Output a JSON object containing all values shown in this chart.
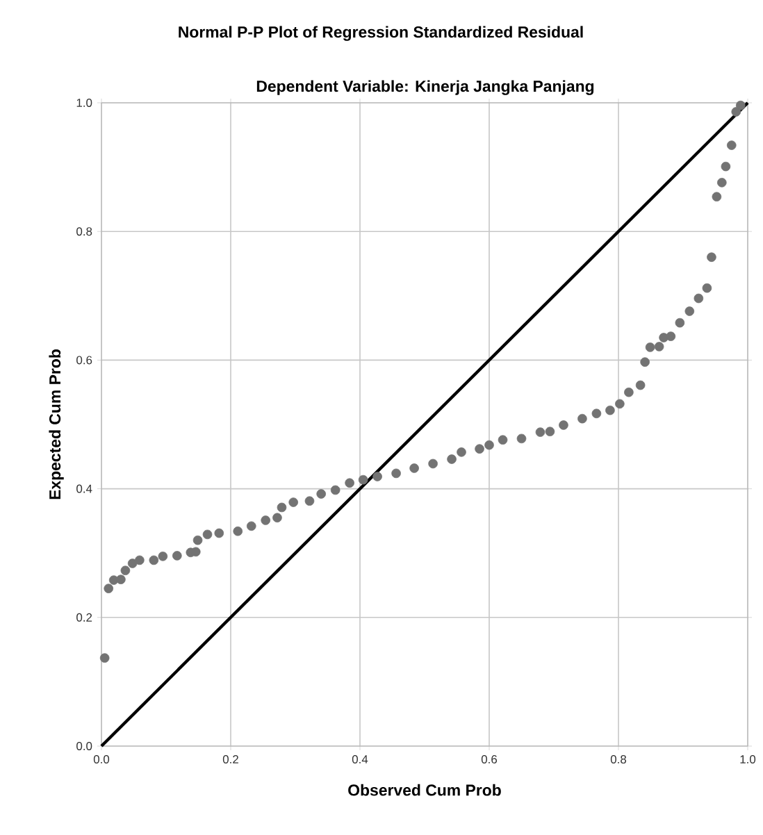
{
  "chart_data": {
    "type": "scatter",
    "title": "Normal P-P Plot of Regression Standardized Residual",
    "subtitle": "Dependent Variable: Kinerja Jangka Panjang",
    "xlabel": "Observed Cum Prob",
    "ylabel": "Expected Cum Prob",
    "xlim": [
      0,
      1
    ],
    "ylim": [
      0,
      1
    ],
    "xticks": [
      {
        "value": 0,
        "label": "0.0"
      },
      {
        "value": 0.2,
        "label": "0.2"
      },
      {
        "value": 0.4,
        "label": "0.4"
      },
      {
        "value": 0.6,
        "label": "0.6"
      },
      {
        "value": 0.8,
        "label": "0.8"
      },
      {
        "value": 1,
        "label": "1.0"
      }
    ],
    "yticks": [
      {
        "value": 0,
        "label": "0.0"
      },
      {
        "value": 0.2,
        "label": "0.2"
      },
      {
        "value": 0.4,
        "label": "0.4"
      },
      {
        "value": 0.6,
        "label": "0.6"
      },
      {
        "value": 0.8,
        "label": "0.8"
      },
      {
        "value": 1,
        "label": "1.0"
      }
    ],
    "grid": true,
    "series": [
      {
        "color": "#737373",
        "marker": "circle",
        "x": [
          0.005,
          0.011,
          0.019,
          0.03,
          0.037,
          0.048,
          0.059,
          0.081,
          0.095,
          0.117,
          0.138,
          0.146,
          0.149,
          0.164,
          0.182,
          0.211,
          0.232,
          0.254,
          0.272,
          0.279,
          0.297,
          0.322,
          0.34,
          0.362,
          0.384,
          0.405,
          0.427,
          0.456,
          0.484,
          0.513,
          0.542,
          0.557,
          0.585,
          0.6,
          0.621,
          0.65,
          0.679,
          0.694,
          0.715,
          0.744,
          0.766,
          0.787,
          0.802,
          0.816,
          0.834,
          0.841,
          0.849,
          0.863,
          0.87,
          0.881,
          0.895,
          0.91,
          0.924,
          0.937,
          0.944,
          0.952,
          0.96,
          0.966,
          0.975,
          0.982,
          0.989
        ],
        "values": [
          0.137,
          0.245,
          0.258,
          0.259,
          0.273,
          0.284,
          0.289,
          0.289,
          0.295,
          0.296,
          0.301,
          0.302,
          0.32,
          0.329,
          0.331,
          0.334,
          0.342,
          0.351,
          0.355,
          0.371,
          0.379,
          0.381,
          0.392,
          0.398,
          0.409,
          0.414,
          0.419,
          0.424,
          0.432,
          0.439,
          0.446,
          0.457,
          0.462,
          0.468,
          0.476,
          0.478,
          0.488,
          0.489,
          0.499,
          0.509,
          0.517,
          0.522,
          0.532,
          0.55,
          0.561,
          0.597,
          0.62,
          0.621,
          0.635,
          0.637,
          0.658,
          0.676,
          0.696,
          0.712,
          0.76,
          0.854,
          0.876,
          0.901,
          0.934,
          0.986,
          0.996
        ]
      },
      {
        "type": "line",
        "marker": "none",
        "color": "#000000",
        "x": [
          0,
          1
        ],
        "values": [
          0,
          1
        ]
      }
    ]
  }
}
